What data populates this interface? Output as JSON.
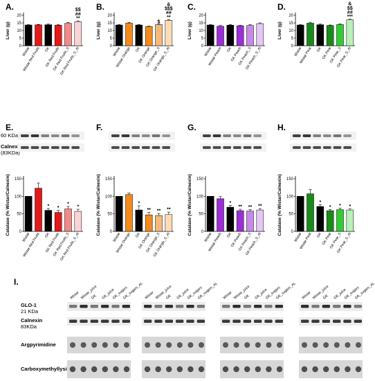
{
  "chart_data": [
    {
      "type": "bar",
      "letter": "A.",
      "ylabel": "Liver (g)",
      "ylim": [
        0,
        20
      ],
      "yticks": [
        0,
        5,
        10,
        15,
        20
      ],
      "categories": [
        "Wistar",
        "Wistar Red Fruits",
        "GK",
        "GK Red Fruits",
        "GK Red Fruits_S",
        "GK Red Fruits_S_Al"
      ],
      "values": [
        13.6,
        13.7,
        13.8,
        13.5,
        14.7,
        15.8
      ],
      "errors": [
        0.3,
        0.3,
        0.4,
        0.3,
        0.6,
        0.5
      ],
      "colors": [
        "#000000",
        "#e11a1a",
        "#000000",
        "#e11a1a",
        "#f28a8a",
        "#fad4d4"
      ],
      "sig": [
        "",
        "",
        "",
        "",
        "",
        "**\n##\n$$"
      ]
    },
    {
      "type": "bar",
      "letter": "B.",
      "ylabel": "Liver (g)",
      "ylim": [
        0,
        20
      ],
      "yticks": [
        0,
        5,
        10,
        15,
        20
      ],
      "categories": [
        "Wistar",
        "Wistar Orange",
        "GK",
        "GK Orange",
        "GK Orange_S",
        "GK Orange_S_Al"
      ],
      "values": [
        13.6,
        14.8,
        13.6,
        12.6,
        13.9,
        16.7
      ],
      "errors": [
        0.3,
        0.5,
        0.4,
        0.3,
        0.3,
        0.4
      ],
      "colors": [
        "#000000",
        "#f28a1e",
        "#000000",
        "#f28a1e",
        "#f5b97a",
        "#fbdcb6"
      ],
      "sig": [
        "",
        "",
        "",
        "",
        "$",
        "**\n##\n$$$\n&"
      ]
    },
    {
      "type": "bar",
      "letter": "C.",
      "ylabel": "Liver (g)",
      "ylim": [
        0,
        20
      ],
      "yticks": [
        0,
        5,
        10,
        15,
        20
      ],
      "categories": [
        "Wistar",
        "Wistar Peach",
        "GK",
        "GK Peach",
        "GK Peach_S",
        "GK Peach_S_Al"
      ],
      "values": [
        13.6,
        12.8,
        13.5,
        13.1,
        13.3,
        14.5
      ],
      "errors": [
        0.3,
        0.5,
        0.4,
        0.4,
        0.5,
        0.5
      ],
      "colors": [
        "#000000",
        "#9b2fd6",
        "#000000",
        "#9b2fd6",
        "#c88ae8",
        "#e4c8f3"
      ],
      "sig": [
        "",
        "",
        "",
        "",
        "",
        ""
      ]
    },
    {
      "type": "bar",
      "letter": "D.",
      "ylabel": "Liver (g)",
      "ylim": [
        0,
        20
      ],
      "yticks": [
        0,
        5,
        10,
        15,
        20
      ],
      "categories": [
        "Wistar",
        "Wistar Pear",
        "GK",
        "GK Pear",
        "GK Pear_S",
        "GK Pear_S_Al"
      ],
      "values": [
        13.6,
        14.8,
        13.8,
        13.3,
        13.9,
        17.0
      ],
      "errors": [
        0.3,
        0.6,
        0.4,
        0.3,
        0.4,
        0.4
      ],
      "colors": [
        "#000000",
        "#1a8a1a",
        "#000000",
        "#1a8a1a",
        "#33cc33",
        "#b8f0b8"
      ],
      "sig": [
        "",
        "",
        "",
        "",
        "",
        "***\n##\n$$\n&"
      ]
    },
    {
      "type": "bar",
      "letter": "E.",
      "ylabel": "Catalase (% Wistar/Calnexin)",
      "ylim": [
        0,
        150
      ],
      "yticks": [
        0,
        50,
        100,
        150
      ],
      "categories": [
        "Wistar",
        "Wistar Red Fruits",
        "GK",
        "GK Red Fruits",
        "GK Red Fruits_S",
        "GK Red Fruits_S_Al"
      ],
      "values": [
        100,
        123,
        60,
        54,
        64,
        57
      ],
      "errors": [
        0,
        15,
        5,
        6,
        7,
        6
      ],
      "colors": [
        "#000000",
        "#e11a1a",
        "#000000",
        "#e11a1a",
        "#f28a8a",
        "#fad4d4"
      ],
      "sig": [
        "",
        "",
        "*",
        "*",
        "*",
        "*"
      ]
    },
    {
      "type": "bar",
      "letter": "F.",
      "ylabel": "Catalase (% Wistar/Calnexin)",
      "ylim": [
        0,
        150
      ],
      "yticks": [
        0,
        50,
        100,
        150
      ],
      "categories": [
        "Wistar",
        "Wistar Orange",
        "GK",
        "GK Orange",
        "GK Orange_S",
        "GK Orange_S_Al"
      ],
      "values": [
        100,
        105,
        61,
        47,
        45,
        48
      ],
      "errors": [
        0,
        4,
        12,
        7,
        6,
        7
      ],
      "colors": [
        "#000000",
        "#f28a1e",
        "#000000",
        "#f28a1e",
        "#f5b97a",
        "#fbdcb6"
      ],
      "sig": [
        "",
        "",
        "*",
        "**",
        "**",
        "**"
      ]
    },
    {
      "type": "bar",
      "letter": "G.",
      "ylabel": "Catalase (% Wistar/Calnexin)",
      "ylim": [
        0,
        150
      ],
      "yticks": [
        0,
        50,
        100,
        150
      ],
      "categories": [
        "Wistar",
        "Wistar Peach",
        "GK",
        "GK Peach",
        "GK Peach_S",
        "GK Peach_S_Al"
      ],
      "values": [
        100,
        93,
        69,
        59,
        58,
        61
      ],
      "errors": [
        0,
        6,
        5,
        4,
        4,
        4
      ],
      "colors": [
        "#000000",
        "#9b2fd6",
        "#000000",
        "#9b2fd6",
        "#c88ae8",
        "#e4c8f3"
      ],
      "sig": [
        "",
        "",
        "*",
        "**",
        "**",
        "**"
      ]
    },
    {
      "type": "bar",
      "letter": "H.",
      "ylabel": "Catalase (% Wistar/Calnexin)",
      "ylim": [
        0,
        150
      ],
      "yticks": [
        0,
        50,
        100,
        150
      ],
      "categories": [
        "Wistar",
        "Wistar Pear",
        "GK",
        "GK Pear",
        "GK Pear_S",
        "GK Pear_S_Al"
      ],
      "values": [
        100,
        107,
        71,
        59,
        62,
        61
      ],
      "errors": [
        0,
        12,
        5,
        3,
        4,
        3
      ],
      "colors": [
        "#000000",
        "#1a8a1a",
        "#000000",
        "#1a8a1a",
        "#33cc33",
        "#b8f0b8"
      ],
      "sig": [
        "",
        "",
        "*",
        "*",
        "*",
        "*"
      ]
    }
  ],
  "blots_top": {
    "label_kda": "60 KDa",
    "label_calnexin": "Calnexin",
    "label_calnexin_kda": "(83KDa)"
  },
  "blots_bottom": {
    "letter": "I.",
    "lanes": [
      "Wistar",
      "Wistar_juice",
      "GK",
      "GK_juice",
      "GK_sugars",
      "GK_sugars_AL"
    ],
    "row_labels": [
      {
        "name": "GLO-1",
        "sub": "21 KDa"
      },
      {
        "name": "Calnexin",
        "sub": "83KDa"
      },
      {
        "name": "Argpyrimidine",
        "sub": ""
      },
      {
        "name": "Carboxymethyllysin",
        "sub": ""
      }
    ]
  }
}
